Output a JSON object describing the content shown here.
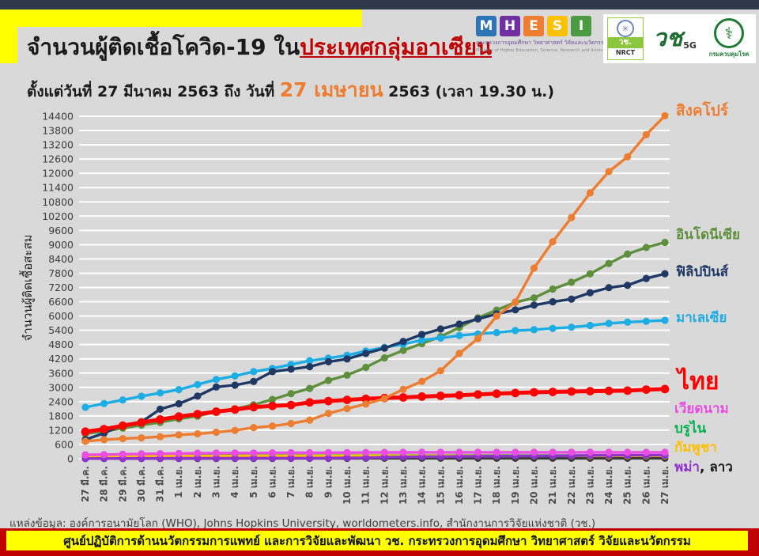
{
  "header": {
    "title_prefix": "จำนวนผู้ติดเชื้อโควิด-19 ใน",
    "title_highlight": "ประเทศกลุ่มอาเซียน",
    "subtitle_prefix": "ตั้งแต่วันที่ 27 มีนาคม 2563 ถึง วันที่ ",
    "subtitle_highlight": "27 เมษายน",
    "subtitle_suffix": " 2563 (เวลา 19.30 น.)"
  },
  "logos": {
    "mhesi": {
      "letters": [
        {
          "ch": "M",
          "color": "#2E75B6"
        },
        {
          "ch": "H",
          "color": "#7030A0"
        },
        {
          "ch": "E",
          "color": "#ED7D31"
        },
        {
          "ch": "S",
          "color": "#FFC000"
        },
        {
          "ch": "I",
          "color": "#4C9A42"
        }
      ],
      "thai": "กระทรวงการอุดมศึกษา วิทยาศาสตร์ วิจัยและนวัตกรรม",
      "eng": "Ministry of Higher Education, Science, Research and Innovation"
    },
    "nrct": {
      "emblem_icon": "✳",
      "thai_abbr": "วช.",
      "abbr": "NRCT"
    },
    "wachi5g": {
      "text": "วช",
      "sub": "5G"
    },
    "ddc": {
      "seal_icon": "⚕",
      "name": "กรมควบคุมโรค"
    }
  },
  "chart_data": {
    "type": "line",
    "ylabel": "จำนวนผู้ติดเชื้อสะสม",
    "ylim": [
      0,
      14400
    ],
    "ytick_step": 600,
    "grid": true,
    "legend_position": "right",
    "categories": [
      "27 มี.ค.",
      "28 มี.ค.",
      "29 มี.ค.",
      "30 มี.ค.",
      "31 มี.ค.",
      "1 เม.ย.",
      "2 เม.ย.",
      "3 เม.ย.",
      "4 เม.ย.",
      "5 เม.ย.",
      "6 เม.ย.",
      "7 เม.ย.",
      "8 เม.ย.",
      "9 เม.ย.",
      "10 เม.ย.",
      "11 เม.ย.",
      "12 เม.ย.",
      "13 เม.ย.",
      "14 เม.ย.",
      "15 เม.ย.",
      "16 เม.ย.",
      "17 เม.ย.",
      "18 เม.ย.",
      "19 เม.ย.",
      "20 เม.ย.",
      "21 เม.ย.",
      "22 เม.ย.",
      "23 เม.ย.",
      "24 เม.ย.",
      "25 เม.ย.",
      "26 เม.ย.",
      "27 เม.ย."
    ],
    "series": [
      {
        "name": "สิงคโปร์",
        "color": "#ED7D31",
        "values": [
          732,
          802,
          844,
          879,
          926,
          1000,
          1049,
          1114,
          1189,
          1309,
          1375,
          1481,
          1623,
          1910,
          2108,
          2299,
          2532,
          2918,
          3252,
          3699,
          4427,
          5050,
          5992,
          6588,
          8014,
          9125,
          10141,
          11178,
          12075,
          12693,
          13624,
          14423
        ]
      },
      {
        "name": "อินโดนีเซีย",
        "color": "#5E8F3D",
        "values": [
          1046,
          1155,
          1285,
          1414,
          1528,
          1677,
          1790,
          1986,
          2092,
          2273,
          2491,
          2738,
          2956,
          3293,
          3512,
          3842,
          4241,
          4557,
          4839,
          5136,
          5516,
          5923,
          6248,
          6575,
          6760,
          7135,
          7418,
          7775,
          8211,
          8607,
          8882,
          9096
        ]
      },
      {
        "name": "ฟิลิปปินส์",
        "color": "#1F3864",
        "values": [
          803,
          1075,
          1418,
          1546,
          2084,
          2311,
          2633,
          3018,
          3094,
          3246,
          3660,
          3764,
          3870,
          4076,
          4195,
          4428,
          4648,
          4932,
          5223,
          5453,
          5660,
          5878,
          6087,
          6259,
          6459,
          6599,
          6710,
          6981,
          7192,
          7294,
          7579,
          7777
        ]
      },
      {
        "name": "มาเลเซีย",
        "color": "#1CADE4",
        "values": [
          2161,
          2320,
          2470,
          2626,
          2766,
          2908,
          3116,
          3333,
          3483,
          3662,
          3793,
          3963,
          4119,
          4228,
          4346,
          4530,
          4683,
          4817,
          4987,
          5072,
          5182,
          5251,
          5305,
          5389,
          5425,
          5482,
          5532,
          5603,
          5691,
          5742,
          5780,
          5820
        ]
      },
      {
        "name": "ไทย",
        "color": "#FF0000",
        "thick": true,
        "values": [
          1136,
          1245,
          1388,
          1524,
          1651,
          1771,
          1875,
          1978,
          2067,
          2169,
          2220,
          2258,
          2369,
          2423,
          2473,
          2518,
          2551,
          2579,
          2613,
          2643,
          2672,
          2700,
          2733,
          2765,
          2792,
          2811,
          2826,
          2839,
          2854,
          2863,
          2907,
          2931
        ]
      },
      {
        "name": "เวียดนาม",
        "color": "#E94DE1",
        "values": [
          163,
          174,
          188,
          203,
          212,
          218,
          233,
          237,
          240,
          241,
          245,
          249,
          251,
          255,
          257,
          262,
          265,
          267,
          268,
          268,
          268,
          268,
          268,
          268,
          268,
          268,
          268,
          268,
          270,
          270,
          270,
          270
        ]
      },
      {
        "name": "บรูไน",
        "color": "#00B050",
        "values": [
          115,
          120,
          126,
          129,
          131,
          133,
          134,
          135,
          135,
          135,
          136,
          135,
          136,
          136,
          136,
          136,
          136,
          136,
          137,
          137,
          138,
          138,
          138,
          138,
          138,
          138,
          138,
          138,
          138,
          138,
          138,
          138
        ]
      },
      {
        "name": "กัมพูชา",
        "color": "#FFC000",
        "values": [
          99,
          103,
          103,
          107,
          109,
          110,
          110,
          114,
          114,
          115,
          117,
          117,
          119,
          119,
          122,
          122,
          122,
          122,
          122,
          122,
          122,
          122,
          122,
          122,
          122,
          122,
          122,
          122,
          122,
          122,
          122,
          122
        ]
      },
      {
        "name": "พม่า",
        "color": "#8F33CC",
        "values": [
          8,
          8,
          10,
          14,
          14,
          16,
          20,
          20,
          21,
          22,
          22,
          22,
          23,
          27,
          38,
          41,
          62,
          74,
          85,
          88,
          98,
          107,
          111,
          119,
          121,
          123,
          127,
          139,
          144,
          146,
          146,
          146
        ]
      },
      {
        "name": "ลาว",
        "color": "#3A3A3A",
        "values": [
          8,
          8,
          8,
          9,
          10,
          10,
          11,
          11,
          12,
          12,
          14,
          15,
          15,
          16,
          16,
          19,
          19,
          19,
          19,
          19,
          19,
          19,
          19,
          19,
          19,
          19,
          19,
          19,
          19,
          19,
          19,
          19
        ]
      }
    ],
    "draw_order": [
      9,
      6,
      7,
      8,
      5,
      1,
      3,
      2,
      4,
      0
    ],
    "labels": {
      "myanmar_laos_suffix": ", ลาว"
    }
  },
  "source": {
    "text": "แหล่งข้อมูล: องค์การอนามัยโลก (WHO), Johns Hopkins University, worldometers.info, สำนักงานการวิจัยแห่งชาติ (วช.)"
  },
  "footer": {
    "text": "ศูนย์ปฏิบัติการด้านนวัตกรรมการแพทย์ และการวิจัยและพัฒนา  วช.   กระทรวงการอุดมศึกษา วิทยาศาสตร์ วิจัยและนวัตกรรม"
  }
}
